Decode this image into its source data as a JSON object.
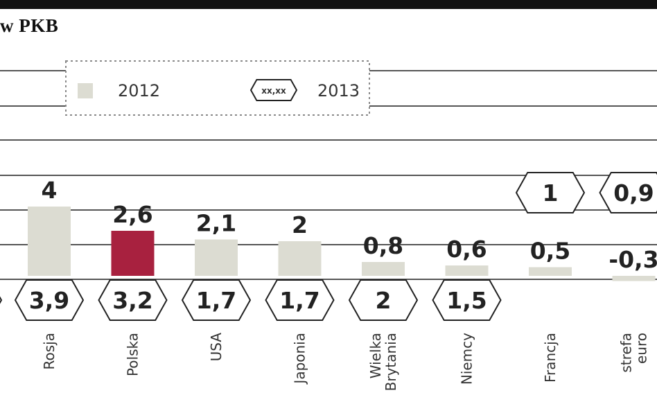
{
  "title": "w PKB",
  "legend": {
    "label_2012": "2012",
    "label_2013": "2013",
    "hex_sample": "xx,xx"
  },
  "colors": {
    "bar": "#dcdcd2",
    "highlight": "#a8213f",
    "grid": "#555555",
    "hex_stroke": "#222222"
  },
  "chart_data": {
    "type": "bar",
    "categories": [
      "Rosja",
      "Polska",
      "USA",
      "Japonia",
      "Wielka Brytania",
      "Niemcy",
      "Francja",
      "strefa euro"
    ],
    "category_lines": [
      [
        "Rosja"
      ],
      [
        "Polska"
      ],
      [
        "USA"
      ],
      [
        "Japonia"
      ],
      [
        "Wielka",
        "Brytania"
      ],
      [
        "Niemcy"
      ],
      [
        "Francja"
      ],
      [
        "strefa",
        "euro"
      ]
    ],
    "series": [
      {
        "name": "2012",
        "values": [
          4,
          2.6,
          2.1,
          2,
          0.8,
          0.6,
          0.5,
          -0.3
        ],
        "labels": [
          "4",
          "2,6",
          "2,1",
          "2",
          "0,8",
          "0,6",
          "0,5",
          "-0,3"
        ]
      },
      {
        "name": "2013",
        "values": [
          3.9,
          3.2,
          1.7,
          1.7,
          2,
          1.5,
          1,
          0.9
        ],
        "labels": [
          "3,9",
          "3,2",
          "1,7",
          "1,7",
          "2",
          "1,5",
          "1",
          "0,9"
        ]
      }
    ],
    "highlight_category": "Polska",
    "grid": true,
    "legend_position": "top"
  }
}
